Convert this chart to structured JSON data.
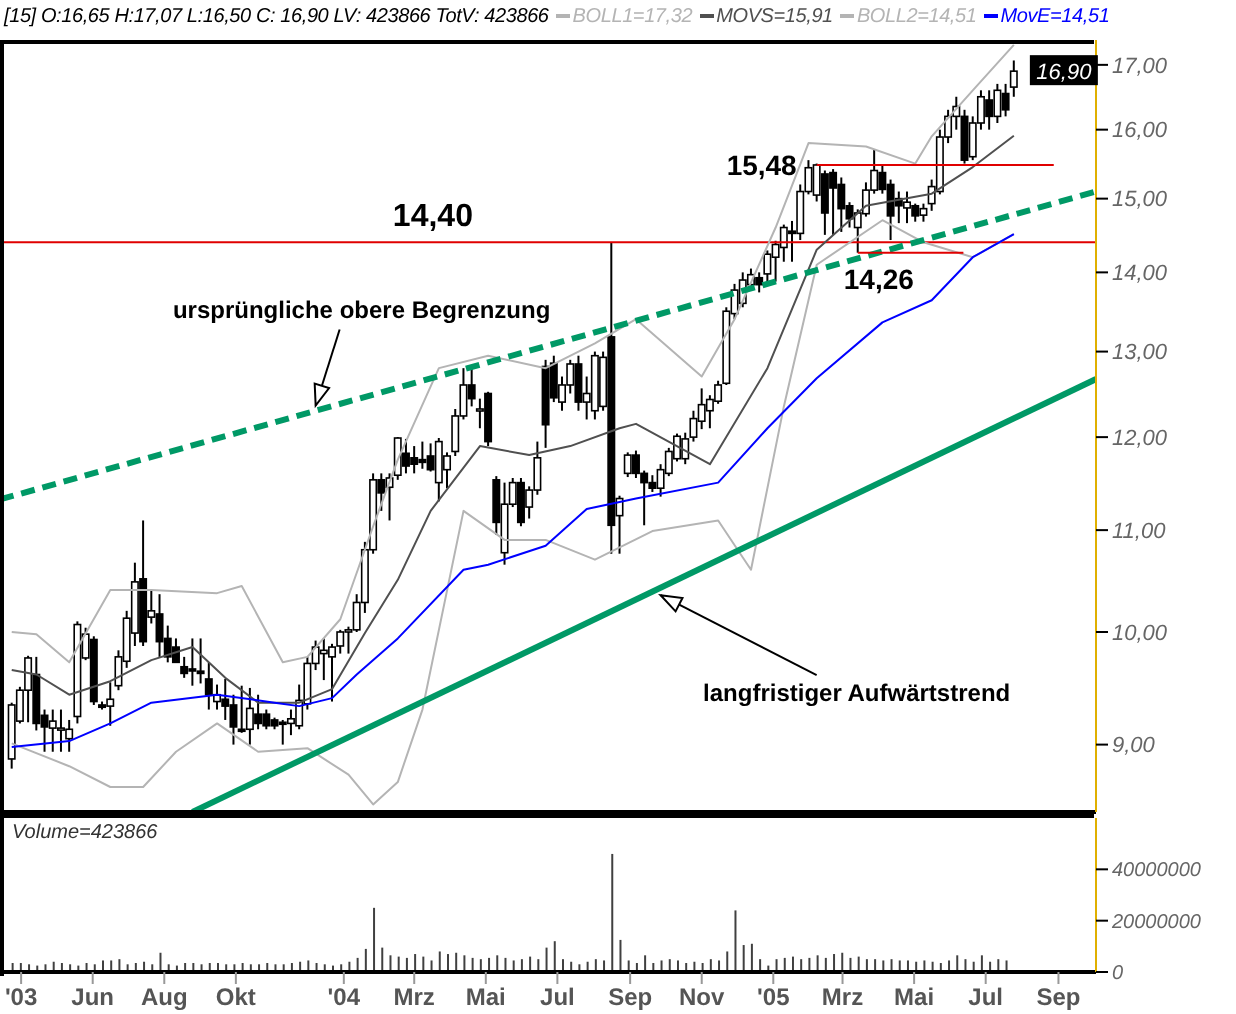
{
  "chart_data": [
    {
      "type": "candlestick",
      "title": "[15] O:16,65 H:17,07 L:16,50 C: 16,90 LV: 423866 TotV: 423866",
      "log": true,
      "legend": "top",
      "tick_labels": "y",
      "xlim": [
        "2003-03-14",
        "2005-10-03"
      ],
      "ylim": [
        8.45,
        17.4
      ],
      "yticks": [
        {
          "value": 9,
          "label": "9,00"
        },
        {
          "value": 10,
          "label": "10,00"
        },
        {
          "value": 11,
          "label": "11,00"
        },
        {
          "value": 12,
          "label": "12,00"
        },
        {
          "value": 13,
          "label": "13,00"
        },
        {
          "value": 14,
          "label": "14,00"
        },
        {
          "value": 15,
          "label": "15,00"
        },
        {
          "value": 16,
          "label": "16,00"
        },
        {
          "value": 17,
          "label": "17,00"
        }
      ],
      "x": [
        "2003-03-24",
        "2003-03-31",
        "2003-04-07",
        "2003-04-14",
        "2003-04-21",
        "2003-04-28",
        "2003-05-05",
        "2003-05-12",
        "2003-05-19",
        "2003-05-26",
        "2003-06-02",
        "2003-06-09",
        "2003-06-16",
        "2003-06-23",
        "2003-06-30",
        "2003-07-07",
        "2003-07-14",
        "2003-07-21",
        "2003-07-28",
        "2003-08-04",
        "2003-08-11",
        "2003-08-18",
        "2003-08-25",
        "2003-09-01",
        "2003-09-08",
        "2003-09-15",
        "2003-09-22",
        "2003-09-29",
        "2003-10-06",
        "2003-10-13",
        "2003-10-20",
        "2003-10-27",
        "2003-11-03",
        "2003-11-10",
        "2003-11-17",
        "2003-11-24",
        "2003-12-01",
        "2003-12-08",
        "2003-12-15",
        "2003-12-22",
        "2003-12-29",
        "2004-01-05",
        "2004-01-12",
        "2004-01-19",
        "2004-01-26",
        "2004-02-02",
        "2004-02-09",
        "2004-02-16",
        "2004-02-23",
        "2004-03-01",
        "2004-03-08",
        "2004-03-15",
        "2004-03-22",
        "2004-03-29",
        "2004-04-05",
        "2004-04-12",
        "2004-04-19",
        "2004-04-26",
        "2004-05-03",
        "2004-05-10",
        "2004-05-17",
        "2004-05-24",
        "2004-05-31",
        "2004-06-07",
        "2004-06-14",
        "2004-06-21",
        "2004-06-28",
        "2004-07-05",
        "2004-07-12",
        "2004-07-19",
        "2004-07-26",
        "2004-08-02",
        "2004-08-09",
        "2004-08-16",
        "2004-08-23",
        "2004-08-30",
        "2004-09-06",
        "2004-09-13",
        "2004-09-20",
        "2004-09-27",
        "2004-10-04",
        "2004-10-11",
        "2004-10-18",
        "2004-10-25",
        "2004-11-01",
        "2004-11-08",
        "2004-11-15",
        "2004-11-22",
        "2004-11-29",
        "2004-12-06",
        "2004-12-13",
        "2004-12-20",
        "2004-12-27",
        "2005-01-03",
        "2005-01-10",
        "2005-01-17",
        "2005-01-24",
        "2005-01-31",
        "2005-02-07",
        "2005-02-14",
        "2005-02-21",
        "2005-02-28",
        "2005-03-07",
        "2005-03-14",
        "2005-03-21",
        "2005-03-28",
        "2005-04-04",
        "2005-04-11",
        "2005-04-18",
        "2005-04-25",
        "2005-05-02",
        "2005-05-09",
        "2005-05-16",
        "2005-05-23",
        "2005-05-30",
        "2005-06-06",
        "2005-06-13",
        "2005-06-20",
        "2005-06-27",
        "2005-07-04",
        "2005-07-11",
        "2005-07-18",
        "2005-07-25"
      ],
      "ohlc": [
        [
          8.88,
          9.36,
          8.8,
          9.34
        ],
        [
          9.2,
          9.5,
          9.18,
          9.47
        ],
        [
          9.47,
          9.78,
          9.19,
          9.76
        ],
        [
          9.61,
          9.77,
          9.12,
          9.18
        ],
        [
          9.25,
          9.3,
          8.94,
          9.15
        ],
        [
          9.14,
          9.3,
          8.94,
          9.2
        ],
        [
          9.13,
          9.3,
          8.94,
          9.14
        ],
        [
          9.05,
          9.21,
          8.94,
          9.13
        ],
        [
          9.24,
          10.1,
          9.18,
          10.07
        ],
        [
          9.76,
          10.04,
          9.74,
          9.98
        ],
        [
          9.93,
          9.96,
          9.34,
          9.37
        ],
        [
          9.34,
          9.37,
          9.3,
          9.32
        ],
        [
          9.33,
          9.54,
          9.16,
          9.39
        ],
        [
          9.51,
          9.83,
          9.47,
          9.77
        ],
        [
          9.73,
          10.2,
          9.67,
          10.13
        ],
        [
          9.99,
          10.67,
          9.87,
          10.48
        ],
        [
          10.51,
          11.1,
          9.87,
          9.91
        ],
        [
          10.14,
          10.4,
          10.08,
          10.2
        ],
        [
          10.17,
          10.36,
          9.77,
          9.91
        ],
        [
          9.94,
          10.06,
          9.72,
          9.77
        ],
        [
          9.86,
          9.94,
          9.72,
          9.72
        ],
        [
          9.68,
          9.77,
          9.58,
          9.62
        ],
        [
          9.66,
          9.94,
          9.51,
          9.65
        ],
        [
          9.64,
          9.94,
          9.53,
          9.62
        ],
        [
          9.57,
          9.72,
          9.3,
          9.43
        ],
        [
          9.37,
          9.52,
          9.3,
          9.43
        ],
        [
          9.39,
          9.57,
          9.21,
          9.33
        ],
        [
          9.34,
          9.43,
          9.0,
          9.15
        ],
        [
          9.13,
          9.51,
          9.1,
          9.12
        ],
        [
          9.13,
          9.49,
          9.0,
          9.31
        ],
        [
          9.26,
          9.43,
          9.13,
          9.18
        ],
        [
          9.26,
          9.3,
          9.13,
          9.16
        ],
        [
          9.21,
          9.23,
          9.13,
          9.16
        ],
        [
          9.19,
          9.21,
          9.0,
          9.18
        ],
        [
          9.18,
          9.3,
          9.08,
          9.22
        ],
        [
          9.16,
          9.52,
          9.13,
          9.38
        ],
        [
          9.35,
          9.77,
          9.3,
          9.71
        ],
        [
          9.71,
          9.92,
          9.65,
          9.86
        ],
        [
          9.8,
          9.94,
          9.56,
          9.83
        ],
        [
          9.77,
          9.89,
          9.37,
          9.86
        ],
        [
          9.87,
          10.02,
          9.8,
          10.0
        ],
        [
          10.0,
          10.05,
          9.8,
          10.02
        ],
        [
          10.02,
          10.36,
          10.0,
          10.28
        ],
        [
          10.28,
          10.88,
          10.18,
          10.8
        ],
        [
          10.8,
          11.6,
          10.76,
          11.53
        ],
        [
          11.53,
          11.6,
          11.2,
          11.39
        ],
        [
          11.45,
          11.6,
          11.1,
          11.55
        ],
        [
          11.58,
          12.0,
          11.53,
          11.99
        ],
        [
          11.82,
          11.98,
          11.6,
          11.68
        ],
        [
          11.77,
          11.9,
          11.6,
          11.7
        ],
        [
          11.75,
          11.95,
          11.65,
          11.72
        ],
        [
          11.79,
          11.93,
          11.62,
          11.64
        ],
        [
          11.5,
          11.99,
          11.3,
          11.95
        ],
        [
          11.64,
          11.83,
          11.44,
          11.79
        ],
        [
          11.84,
          12.32,
          11.79,
          12.24
        ],
        [
          12.24,
          12.8,
          12.2,
          12.6
        ],
        [
          12.6,
          12.8,
          12.35,
          12.44
        ],
        [
          12.3,
          12.44,
          12.1,
          12.32
        ],
        [
          12.5,
          12.52,
          11.9,
          11.95
        ],
        [
          11.53,
          11.57,
          10.95,
          11.08
        ],
        [
          10.77,
          11.5,
          10.65,
          11.27
        ],
        [
          11.27,
          11.55,
          11.24,
          11.5
        ],
        [
          11.5,
          11.55,
          11.04,
          11.08
        ],
        [
          11.24,
          11.46,
          11.12,
          11.42
        ],
        [
          11.42,
          11.95,
          11.37,
          11.77
        ],
        [
          12.82,
          12.9,
          11.88,
          12.14
        ],
        [
          12.86,
          12.95,
          12.4,
          12.45
        ],
        [
          12.4,
          12.7,
          12.3,
          12.6
        ],
        [
          12.6,
          12.9,
          12.5,
          12.85
        ],
        [
          12.85,
          12.95,
          12.3,
          12.4
        ],
        [
          12.4,
          12.7,
          12.2,
          12.5
        ],
        [
          12.3,
          13.0,
          12.2,
          12.95
        ],
        [
          12.35,
          13.0,
          12.3,
          12.93
        ],
        [
          13.18,
          14.4,
          10.76,
          11.05
        ],
        [
          11.15,
          11.36,
          10.76,
          11.33
        ],
        [
          11.6,
          11.83,
          11.56,
          11.8
        ],
        [
          11.8,
          11.85,
          11.55,
          11.6
        ],
        [
          11.6,
          11.63,
          11.05,
          11.5
        ],
        [
          11.5,
          11.58,
          11.4,
          11.44
        ],
        [
          11.44,
          11.7,
          11.35,
          11.64
        ],
        [
          11.6,
          11.88,
          11.57,
          11.84
        ],
        [
          11.76,
          12.04,
          11.73,
          12.01
        ],
        [
          11.76,
          12.05,
          11.7,
          11.98
        ],
        [
          12.0,
          12.3,
          11.95,
          12.21
        ],
        [
          12.18,
          12.56,
          12.09,
          12.37
        ],
        [
          12.3,
          12.48,
          12.1,
          12.43
        ],
        [
          12.41,
          12.65,
          12.38,
          12.6
        ],
        [
          12.62,
          13.55,
          12.6,
          13.5
        ],
        [
          13.47,
          13.85,
          13.4,
          13.77
        ],
        [
          13.6,
          14.0,
          13.55,
          13.9
        ],
        [
          13.84,
          14.05,
          13.77,
          13.97
        ],
        [
          13.93,
          14.0,
          13.74,
          13.84
        ],
        [
          13.98,
          14.29,
          13.84,
          14.24
        ],
        [
          14.2,
          14.42,
          13.88,
          14.37
        ],
        [
          14.33,
          14.64,
          14.14,
          14.6
        ],
        [
          14.55,
          14.69,
          14.14,
          14.52
        ],
        [
          14.52,
          15.2,
          14.43,
          15.1
        ],
        [
          15.1,
          15.55,
          15.06,
          15.44
        ],
        [
          15.05,
          15.5,
          14.96,
          15.48
        ],
        [
          15.35,
          15.4,
          14.5,
          14.8
        ],
        [
          15.37,
          15.42,
          14.5,
          15.15
        ],
        [
          15.2,
          15.3,
          14.54,
          14.86
        ],
        [
          14.9,
          14.95,
          14.6,
          14.72
        ],
        [
          14.6,
          14.85,
          14.26,
          14.8
        ],
        [
          14.79,
          15.23,
          14.75,
          15.12
        ],
        [
          15.12,
          15.7,
          15.07,
          15.4
        ],
        [
          15.37,
          15.48,
          15.07,
          15.13
        ],
        [
          15.2,
          15.27,
          14.43,
          14.76
        ],
        [
          15.0,
          15.1,
          14.66,
          14.9
        ],
        [
          14.87,
          15.1,
          14.66,
          14.95
        ],
        [
          14.9,
          14.93,
          14.68,
          14.76
        ],
        [
          14.77,
          14.93,
          14.68,
          14.86
        ],
        [
          14.93,
          15.27,
          14.83,
          15.17
        ],
        [
          15.1,
          16.0,
          15.06,
          15.89
        ],
        [
          15.89,
          16.3,
          15.8,
          16.2
        ],
        [
          16.2,
          16.5,
          16.0,
          16.35
        ],
        [
          16.2,
          16.3,
          15.5,
          15.55
        ],
        [
          15.6,
          16.2,
          15.55,
          16.1
        ],
        [
          16.1,
          16.6,
          16.0,
          16.5
        ],
        [
          16.45,
          16.6,
          16.0,
          16.2
        ],
        [
          16.2,
          16.7,
          16.1,
          16.6
        ],
        [
          16.55,
          16.7,
          16.2,
          16.3
        ],
        [
          16.65,
          17.07,
          16.5,
          16.9
        ]
      ],
      "series": [
        {
          "type": "line",
          "name": "BOLL1=17,32",
          "color": "#b4b4b4",
          "x": [
            "2003-03-24",
            "2003-04-14",
            "2003-05-12",
            "2003-06-16",
            "2003-07-21",
            "2003-09-15",
            "2003-10-06",
            "2003-11-10",
            "2003-12-01",
            "2003-12-29",
            "2004-01-26",
            "2004-02-16",
            "2004-03-22",
            "2004-05-03",
            "2004-06-21",
            "2004-08-02",
            "2004-09-06",
            "2004-11-01",
            "2004-11-29",
            "2005-01-03",
            "2005-01-31",
            "2005-03-21",
            "2005-05-02",
            "2005-05-16",
            "2005-06-20",
            "2005-07-25"
          ],
          "values": [
            10.0,
            9.98,
            9.72,
            10.4,
            10.4,
            10.37,
            10.44,
            9.72,
            9.77,
            10.12,
            11.04,
            11.75,
            12.8,
            12.95,
            12.8,
            13.1,
            13.4,
            12.7,
            13.4,
            14.6,
            15.8,
            15.75,
            15.5,
            15.9,
            16.6,
            17.32
          ]
        },
        {
          "type": "line",
          "name": "MOVS=15,91",
          "color": "#505050",
          "x": [
            "2003-03-24",
            "2003-04-14",
            "2003-05-12",
            "2003-06-16",
            "2003-07-21",
            "2003-08-25",
            "2003-09-22",
            "2003-10-20",
            "2003-11-24",
            "2003-12-22",
            "2004-01-19",
            "2004-02-16",
            "2004-03-15",
            "2004-04-26",
            "2004-06-07",
            "2004-07-12",
            "2004-08-23",
            "2004-09-06",
            "2004-11-08",
            "2004-12-27",
            "2005-02-07",
            "2005-03-21",
            "2005-05-16",
            "2005-06-20",
            "2005-07-25"
          ],
          "values": [
            9.65,
            9.61,
            9.43,
            9.55,
            9.74,
            9.86,
            9.58,
            9.36,
            9.36,
            9.48,
            9.99,
            10.5,
            11.2,
            11.9,
            11.8,
            11.9,
            12.1,
            12.15,
            11.7,
            12.8,
            14.3,
            14.9,
            15.07,
            15.45,
            15.91
          ]
        },
        {
          "type": "line",
          "name": "BOLL2=14,51",
          "color": "#b4b4b4",
          "x": [
            "2003-03-24",
            "2003-05-12",
            "2003-06-16",
            "2003-07-14",
            "2003-08-11",
            "2003-09-15",
            "2003-10-20",
            "2003-12-01",
            "2004-01-05",
            "2004-01-26",
            "2004-02-16",
            "2004-03-08",
            "2004-04-12",
            "2004-05-17",
            "2004-06-21",
            "2004-08-02",
            "2004-09-20",
            "2004-11-15",
            "2004-12-13",
            "2005-01-10",
            "2005-02-07",
            "2005-04-04",
            "2005-05-09",
            "2005-06-20",
            "2005-07-25"
          ],
          "values": [
            9.01,
            8.82,
            8.65,
            8.65,
            8.94,
            9.18,
            8.94,
            8.97,
            8.75,
            8.51,
            8.69,
            9.3,
            11.2,
            10.9,
            10.9,
            10.7,
            10.99,
            11.1,
            10.6,
            12.35,
            14.1,
            14.7,
            14.4,
            14.2,
            14.51
          ]
        },
        {
          "type": "line",
          "name": "MovE=14,51",
          "color": "#0000ff",
          "x": [
            "2003-03-24",
            "2003-05-12",
            "2003-06-16",
            "2003-07-21",
            "2003-09-15",
            "2003-11-03",
            "2003-11-24",
            "2003-12-22",
            "2004-01-12",
            "2004-02-16",
            "2004-04-12",
            "2004-05-03",
            "2004-06-21",
            "2004-07-26",
            "2004-09-06",
            "2004-11-15",
            "2004-12-27",
            "2005-02-07",
            "2005-04-04",
            "2005-05-16",
            "2005-06-20",
            "2005-07-25"
          ],
          "values": [
            8.98,
            9.03,
            9.18,
            9.36,
            9.43,
            9.36,
            9.33,
            9.4,
            9.61,
            9.94,
            10.6,
            10.65,
            10.84,
            11.22,
            11.33,
            11.5,
            12.1,
            12.68,
            13.36,
            13.64,
            14.2,
            14.51
          ]
        },
        {
          "type": "line",
          "color": "#009966",
          "line_style": "dashed",
          "x": [
            "2003-03-14",
            "2005-10-03"
          ],
          "values": [
            11.32,
            15.1
          ]
        },
        {
          "type": "line",
          "color": "#009966",
          "line_style": "solid",
          "x": [
            "2003-08-25",
            "2005-10-03"
          ],
          "values": [
            8.45,
            12.67
          ]
        },
        {
          "type": "line",
          "color": "#e00000",
          "x": [
            "2005-02-07",
            "2005-08-28"
          ],
          "values": [
            15.48,
            15.48
          ]
        },
        {
          "type": "line",
          "color": "#e00000",
          "x": [
            "2005-03-14",
            "2005-06-12"
          ],
          "values": [
            14.26,
            14.26
          ]
        }
      ],
      "ref_lines": [
        {
          "axis": "y",
          "value": 14.4,
          "label": "14,40",
          "color": "#e00000"
        }
      ],
      "annotations": [
        {
          "text": "ursprüngliche obere Begrenzung",
          "x": "2003-12-08",
          "y": 12.36
        },
        {
          "text": "langfristiger Aufwärtstrend",
          "x": "2004-09-27",
          "y": 10.35
        },
        {
          "text": "15,48",
          "x": "2005-02-07",
          "y": 15.48
        },
        {
          "text": "14,26",
          "x": "2005-03-14",
          "y": 14.26
        },
        {
          "text": "16,90",
          "x": "2005-07-25",
          "y": 16.9
        }
      ]
    },
    {
      "type": "bar",
      "title": "Volume=423866",
      "color": "#404040",
      "xlim": [
        "2003-03-14",
        "2005-10-03"
      ],
      "xticks": [
        {
          "value": "2003-04-01",
          "label": "'03"
        },
        {
          "value": "2003-06-01",
          "label": "Jun"
        },
        {
          "value": "2003-08-01",
          "label": "Aug"
        },
        {
          "value": "2003-10-01",
          "label": "Okt"
        },
        {
          "value": "2004-01-01",
          "label": "'04"
        },
        {
          "value": "2004-03-01",
          "label": "Mrz"
        },
        {
          "value": "2004-05-01",
          "label": "Mai"
        },
        {
          "value": "2004-07-01",
          "label": "Jul"
        },
        {
          "value": "2004-09-01",
          "label": "Sep"
        },
        {
          "value": "2004-11-01",
          "label": "Nov"
        },
        {
          "value": "2005-01-01",
          "label": "'05"
        },
        {
          "value": "2005-03-01",
          "label": "Mrz"
        },
        {
          "value": "2005-05-01",
          "label": "Mai"
        },
        {
          "value": "2005-07-01",
          "label": "Jul"
        },
        {
          "value": "2005-09-01",
          "label": "Sep"
        }
      ],
      "ylim": [
        0,
        60000000
      ],
      "yticks": [
        0,
        20000000,
        40000000
      ],
      "x": [
        "2003-03-24",
        "2003-03-31",
        "2003-04-07",
        "2003-04-14",
        "2003-04-21",
        "2003-04-28",
        "2003-05-05",
        "2003-05-12",
        "2003-05-19",
        "2003-05-26",
        "2003-06-02",
        "2003-06-09",
        "2003-06-16",
        "2003-06-23",
        "2003-06-30",
        "2003-07-07",
        "2003-07-14",
        "2003-07-21",
        "2003-07-28",
        "2003-08-04",
        "2003-08-11",
        "2003-08-18",
        "2003-08-25",
        "2003-09-01",
        "2003-09-08",
        "2003-09-15",
        "2003-09-22",
        "2003-09-29",
        "2003-10-06",
        "2003-10-13",
        "2003-10-20",
        "2003-10-27",
        "2003-11-03",
        "2003-11-10",
        "2003-11-17",
        "2003-11-24",
        "2003-12-01",
        "2003-12-08",
        "2003-12-15",
        "2003-12-22",
        "2003-12-29",
        "2004-01-05",
        "2004-01-12",
        "2004-01-19",
        "2004-01-26",
        "2004-02-02",
        "2004-02-09",
        "2004-02-16",
        "2004-02-23",
        "2004-03-01",
        "2004-03-08",
        "2004-03-15",
        "2004-03-22",
        "2004-03-29",
        "2004-04-05",
        "2004-04-12",
        "2004-04-19",
        "2004-04-26",
        "2004-05-03",
        "2004-05-10",
        "2004-05-17",
        "2004-05-24",
        "2004-05-31",
        "2004-06-07",
        "2004-06-14",
        "2004-06-21",
        "2004-06-28",
        "2004-07-05",
        "2004-07-12",
        "2004-07-19",
        "2004-07-26",
        "2004-08-02",
        "2004-08-09",
        "2004-08-16",
        "2004-08-23",
        "2004-08-30",
        "2004-09-06",
        "2004-09-13",
        "2004-09-20",
        "2004-09-27",
        "2004-10-04",
        "2004-10-11",
        "2004-10-18",
        "2004-10-25",
        "2004-11-01",
        "2004-11-08",
        "2004-11-15",
        "2004-11-22",
        "2004-11-29",
        "2004-12-06",
        "2004-12-13",
        "2004-12-20",
        "2004-12-27",
        "2005-01-03",
        "2005-01-10",
        "2005-01-17",
        "2005-01-24",
        "2005-01-31",
        "2005-02-07",
        "2005-02-14",
        "2005-02-21",
        "2005-02-28",
        "2005-03-07",
        "2005-03-14",
        "2005-03-21",
        "2005-03-28",
        "2005-04-04",
        "2005-04-11",
        "2005-04-18",
        "2005-04-25",
        "2005-05-02",
        "2005-05-09",
        "2005-05-16",
        "2005-05-23",
        "2005-05-30",
        "2005-06-06",
        "2005-06-13",
        "2005-06-20",
        "2005-06-27",
        "2005-07-04",
        "2005-07-11",
        "2005-07-18",
        "2005-07-25"
      ],
      "values": [
        3500000,
        3500000,
        3000000,
        2500000,
        3000000,
        4000000,
        3500000,
        3000000,
        2500000,
        3500000,
        3000000,
        4500000,
        4500000,
        5000000,
        3000000,
        3500000,
        4000000,
        3000000,
        7500000,
        3000000,
        2500000,
        3500000,
        3500000,
        3000000,
        3500000,
        3500000,
        3000000,
        3000000,
        3500000,
        3000000,
        3000000,
        3500000,
        3000000,
        3000000,
        3500000,
        4000000,
        4500000,
        3500000,
        3000000,
        2500000,
        3000000,
        4000000,
        5500000,
        9000000,
        25000000,
        9500000,
        6500000,
        6000000,
        5500000,
        7000000,
        6000000,
        4500000,
        8000000,
        7000000,
        7500000,
        6500000,
        5500000,
        5000000,
        5500000,
        6500000,
        5500000,
        4500000,
        5000000,
        6000000,
        5000000,
        9500000,
        12000000,
        5000000,
        4000000,
        3000000,
        4000000,
        5000000,
        4500000,
        46000000,
        12500000,
        4500000,
        3500000,
        6500000,
        3500000,
        4500000,
        5000000,
        4500000,
        3500000,
        4000000,
        3500000,
        5000000,
        4500000,
        8000000,
        24000000,
        10500000,
        11000000,
        5000000,
        2500000,
        5000000,
        5500000,
        6000000,
        5000000,
        5500000,
        6500000,
        5500000,
        7000000,
        7500000,
        5500000,
        6000000,
        5000000,
        5000000,
        4500000,
        5000000,
        4500000,
        4500000,
        4000000,
        4500000,
        4000000,
        3500000,
        4500000,
        6500000,
        5000000,
        4000000,
        6500000,
        4000000,
        5000000,
        4500000,
        423866
      ]
    }
  ]
}
